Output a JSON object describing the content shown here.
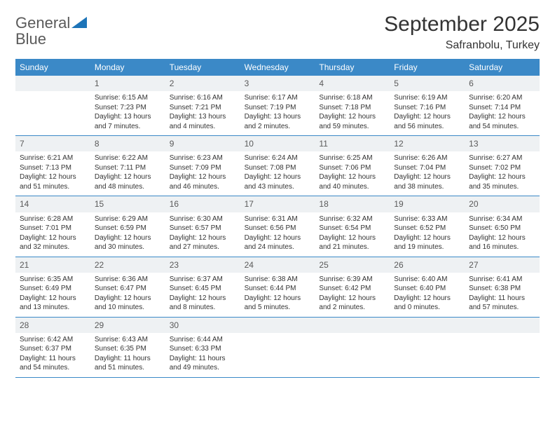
{
  "logo": {
    "word1": "General",
    "word2": "Blue"
  },
  "title": "September 2025",
  "location": "Safranbolu, Turkey",
  "colors": {
    "header_bg": "#3b89c7",
    "header_text": "#ffffff",
    "daynum_bg": "#eef1f3",
    "rule": "#3b89c7",
    "logo_gray": "#5a5a5a",
    "logo_blue": "#1d74b8"
  },
  "day_names": [
    "Sunday",
    "Monday",
    "Tuesday",
    "Wednesday",
    "Thursday",
    "Friday",
    "Saturday"
  ],
  "weeks": [
    [
      {
        "n": "",
        "sr": "",
        "ss": "",
        "dl": ""
      },
      {
        "n": "1",
        "sr": "Sunrise: 6:15 AM",
        "ss": "Sunset: 7:23 PM",
        "dl": "Daylight: 13 hours and 7 minutes."
      },
      {
        "n": "2",
        "sr": "Sunrise: 6:16 AM",
        "ss": "Sunset: 7:21 PM",
        "dl": "Daylight: 13 hours and 4 minutes."
      },
      {
        "n": "3",
        "sr": "Sunrise: 6:17 AM",
        "ss": "Sunset: 7:19 PM",
        "dl": "Daylight: 13 hours and 2 minutes."
      },
      {
        "n": "4",
        "sr": "Sunrise: 6:18 AM",
        "ss": "Sunset: 7:18 PM",
        "dl": "Daylight: 12 hours and 59 minutes."
      },
      {
        "n": "5",
        "sr": "Sunrise: 6:19 AM",
        "ss": "Sunset: 7:16 PM",
        "dl": "Daylight: 12 hours and 56 minutes."
      },
      {
        "n": "6",
        "sr": "Sunrise: 6:20 AM",
        "ss": "Sunset: 7:14 PM",
        "dl": "Daylight: 12 hours and 54 minutes."
      }
    ],
    [
      {
        "n": "7",
        "sr": "Sunrise: 6:21 AM",
        "ss": "Sunset: 7:13 PM",
        "dl": "Daylight: 12 hours and 51 minutes."
      },
      {
        "n": "8",
        "sr": "Sunrise: 6:22 AM",
        "ss": "Sunset: 7:11 PM",
        "dl": "Daylight: 12 hours and 48 minutes."
      },
      {
        "n": "9",
        "sr": "Sunrise: 6:23 AM",
        "ss": "Sunset: 7:09 PM",
        "dl": "Daylight: 12 hours and 46 minutes."
      },
      {
        "n": "10",
        "sr": "Sunrise: 6:24 AM",
        "ss": "Sunset: 7:08 PM",
        "dl": "Daylight: 12 hours and 43 minutes."
      },
      {
        "n": "11",
        "sr": "Sunrise: 6:25 AM",
        "ss": "Sunset: 7:06 PM",
        "dl": "Daylight: 12 hours and 40 minutes."
      },
      {
        "n": "12",
        "sr": "Sunrise: 6:26 AM",
        "ss": "Sunset: 7:04 PM",
        "dl": "Daylight: 12 hours and 38 minutes."
      },
      {
        "n": "13",
        "sr": "Sunrise: 6:27 AM",
        "ss": "Sunset: 7:02 PM",
        "dl": "Daylight: 12 hours and 35 minutes."
      }
    ],
    [
      {
        "n": "14",
        "sr": "Sunrise: 6:28 AM",
        "ss": "Sunset: 7:01 PM",
        "dl": "Daylight: 12 hours and 32 minutes."
      },
      {
        "n": "15",
        "sr": "Sunrise: 6:29 AM",
        "ss": "Sunset: 6:59 PM",
        "dl": "Daylight: 12 hours and 30 minutes."
      },
      {
        "n": "16",
        "sr": "Sunrise: 6:30 AM",
        "ss": "Sunset: 6:57 PM",
        "dl": "Daylight: 12 hours and 27 minutes."
      },
      {
        "n": "17",
        "sr": "Sunrise: 6:31 AM",
        "ss": "Sunset: 6:56 PM",
        "dl": "Daylight: 12 hours and 24 minutes."
      },
      {
        "n": "18",
        "sr": "Sunrise: 6:32 AM",
        "ss": "Sunset: 6:54 PM",
        "dl": "Daylight: 12 hours and 21 minutes."
      },
      {
        "n": "19",
        "sr": "Sunrise: 6:33 AM",
        "ss": "Sunset: 6:52 PM",
        "dl": "Daylight: 12 hours and 19 minutes."
      },
      {
        "n": "20",
        "sr": "Sunrise: 6:34 AM",
        "ss": "Sunset: 6:50 PM",
        "dl": "Daylight: 12 hours and 16 minutes."
      }
    ],
    [
      {
        "n": "21",
        "sr": "Sunrise: 6:35 AM",
        "ss": "Sunset: 6:49 PM",
        "dl": "Daylight: 12 hours and 13 minutes."
      },
      {
        "n": "22",
        "sr": "Sunrise: 6:36 AM",
        "ss": "Sunset: 6:47 PM",
        "dl": "Daylight: 12 hours and 10 minutes."
      },
      {
        "n": "23",
        "sr": "Sunrise: 6:37 AM",
        "ss": "Sunset: 6:45 PM",
        "dl": "Daylight: 12 hours and 8 minutes."
      },
      {
        "n": "24",
        "sr": "Sunrise: 6:38 AM",
        "ss": "Sunset: 6:44 PM",
        "dl": "Daylight: 12 hours and 5 minutes."
      },
      {
        "n": "25",
        "sr": "Sunrise: 6:39 AM",
        "ss": "Sunset: 6:42 PM",
        "dl": "Daylight: 12 hours and 2 minutes."
      },
      {
        "n": "26",
        "sr": "Sunrise: 6:40 AM",
        "ss": "Sunset: 6:40 PM",
        "dl": "Daylight: 12 hours and 0 minutes."
      },
      {
        "n": "27",
        "sr": "Sunrise: 6:41 AM",
        "ss": "Sunset: 6:38 PM",
        "dl": "Daylight: 11 hours and 57 minutes."
      }
    ],
    [
      {
        "n": "28",
        "sr": "Sunrise: 6:42 AM",
        "ss": "Sunset: 6:37 PM",
        "dl": "Daylight: 11 hours and 54 minutes."
      },
      {
        "n": "29",
        "sr": "Sunrise: 6:43 AM",
        "ss": "Sunset: 6:35 PM",
        "dl": "Daylight: 11 hours and 51 minutes."
      },
      {
        "n": "30",
        "sr": "Sunrise: 6:44 AM",
        "ss": "Sunset: 6:33 PM",
        "dl": "Daylight: 11 hours and 49 minutes."
      },
      {
        "n": "",
        "sr": "",
        "ss": "",
        "dl": ""
      },
      {
        "n": "",
        "sr": "",
        "ss": "",
        "dl": ""
      },
      {
        "n": "",
        "sr": "",
        "ss": "",
        "dl": ""
      },
      {
        "n": "",
        "sr": "",
        "ss": "",
        "dl": ""
      }
    ]
  ]
}
